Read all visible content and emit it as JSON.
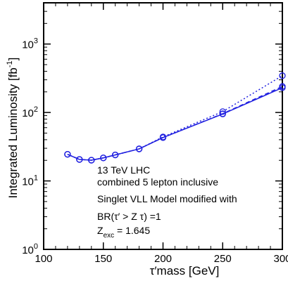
{
  "chart_data": {
    "type": "line",
    "xlabel": "τ′mass  [GeV]",
    "ylabel": "Integrated Luminosity [fb⁻¹]",
    "ylabel_main": "Integrated Luminosity [fb",
    "ylabel_sup": "-1",
    "ylabel_close": "]",
    "xlim": [
      100,
      300
    ],
    "ylim": [
      1,
      4000
    ],
    "yscale": "log",
    "x_ticks": [
      100,
      150,
      200,
      250,
      300
    ],
    "y_ticks": [
      {
        "value": 1,
        "base": "10",
        "exp": "0"
      },
      {
        "value": 10,
        "base": "10",
        "exp": "1"
      },
      {
        "value": 100,
        "base": "10",
        "exp": "2"
      },
      {
        "value": 1000,
        "base": "10",
        "exp": "3"
      }
    ],
    "series": [
      {
        "style": "solid",
        "markers": true,
        "color": "#2020e0",
        "x": [
          120,
          130,
          140,
          150,
          160,
          180,
          200,
          250,
          300
        ],
        "y": [
          24.5,
          20.6,
          20.1,
          21.7,
          24.0,
          29.4,
          43.0,
          95.0,
          230.0
        ]
      },
      {
        "style": "dashed",
        "markers": true,
        "color": "#2020e0",
        "x": [
          120,
          130,
          140,
          150,
          160,
          180,
          200,
          250,
          300
        ],
        "y": [
          24.5,
          20.6,
          20.1,
          21.7,
          24.0,
          29.4,
          43.0,
          96.0,
          240.0
        ]
      },
      {
        "style": "dotted",
        "markers": true,
        "color": "#2020e0",
        "x": [
          120,
          130,
          140,
          150,
          160,
          180,
          200,
          250,
          300
        ],
        "y": [
          24.5,
          20.6,
          20.1,
          21.7,
          24.0,
          29.4,
          44.0,
          103.0,
          345.0
        ]
      }
    ],
    "annotations": {
      "line1": "13 TeV LHC",
      "line2": "combined 5 lepton inclusive",
      "line3": "Singlet VLL Model modified with",
      "line4": "BR(τ′ > Z τ) =1",
      "line5_main": "Z",
      "line5_sub": "exc",
      "line5_rest": " = 1.645"
    }
  }
}
